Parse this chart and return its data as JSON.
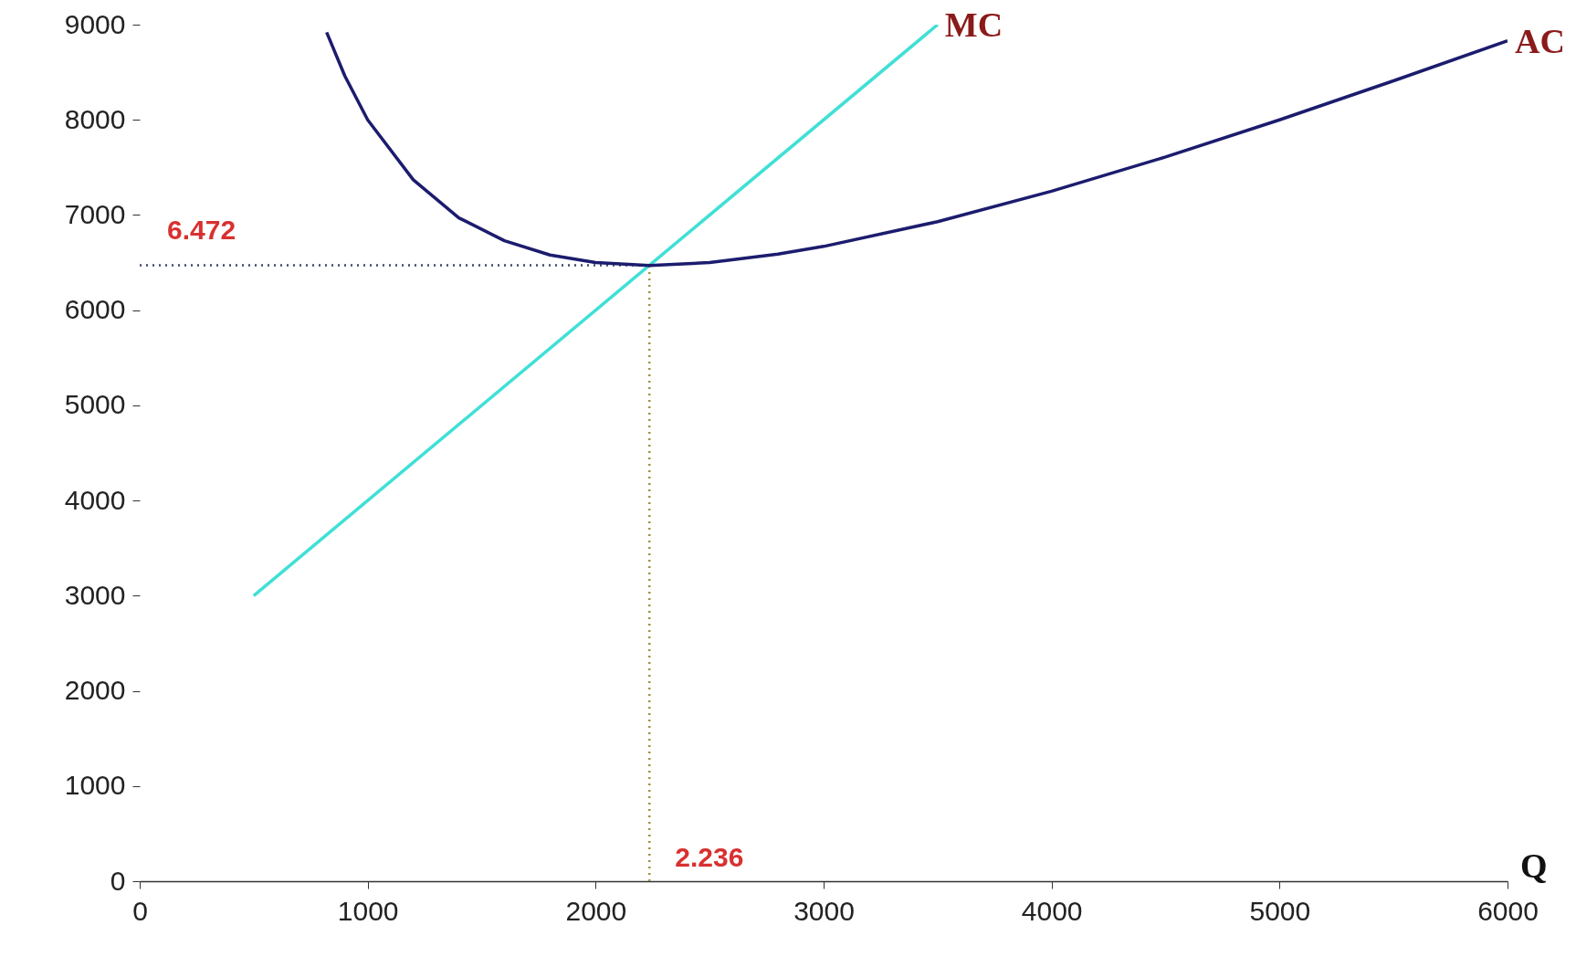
{
  "chart_data": {
    "type": "line",
    "xlabel": "Q",
    "xlim": [
      0,
      6000
    ],
    "xticks": [
      0,
      1000,
      2000,
      3000,
      4000,
      5000,
      6000
    ],
    "ylim": [
      0,
      9000
    ],
    "yticks": [
      0,
      1000,
      2000,
      3000,
      4000,
      5000,
      6000,
      7000,
      8000,
      9000
    ],
    "grid": false,
    "marker": "none",
    "line_style": "solid",
    "series": [
      {
        "name": "MC",
        "color": "#3fe0d6",
        "x": [
          500,
          3500
        ],
        "values": [
          3000,
          9000
        ]
      },
      {
        "name": "AC",
        "color": "#1c1c6e",
        "x": [
          820,
          900,
          1000,
          1200,
          1400,
          1600,
          1800,
          2000,
          2236,
          2500,
          2800,
          3000,
          3500,
          4000,
          4500,
          5000,
          5500,
          6000
        ],
        "values": [
          8920,
          8460,
          8000,
          7370,
          6970,
          6730,
          6580,
          6500,
          6470,
          6500,
          6590,
          6670,
          6930,
          7250,
          7610,
          8000,
          8410,
          8830
        ]
      }
    ],
    "ref_lines": [
      {
        "axis": "y",
        "value": 6472,
        "label": "6.472",
        "color": "#3a4a6a",
        "line_style": "dotted"
      },
      {
        "axis": "x",
        "value": 2236,
        "label": "2.236",
        "color": "#a09040",
        "line_style": "dotted"
      }
    ]
  }
}
